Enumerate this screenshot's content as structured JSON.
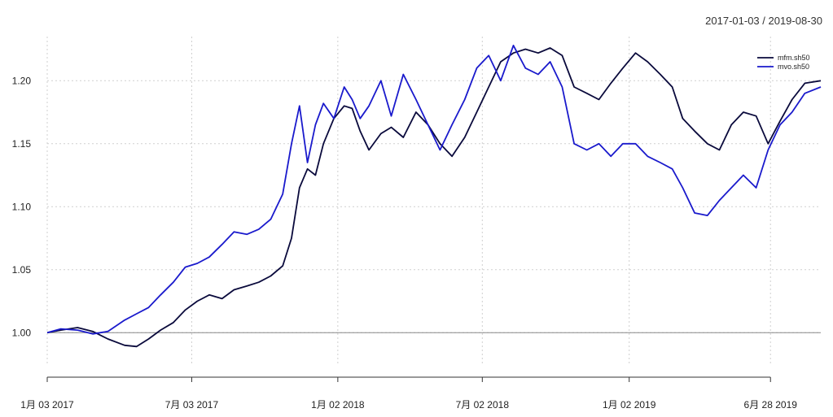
{
  "chart_data": {
    "type": "line",
    "date_range_label": "2017-01-03 / 2019-08-30",
    "x_ticks": [
      "1月 03 2017",
      "7月 03 2017",
      "1月 02 2018",
      "7月 02 2018",
      "1月 02 2019",
      "6月 28 2019"
    ],
    "y_ticks": [
      "1.00",
      "1.05",
      "1.10",
      "1.15",
      "1.20"
    ],
    "ylim": [
      0.975,
      1.235
    ],
    "grid": true,
    "legend_position": "top-right",
    "series": [
      {
        "name": "mfm.sh50",
        "color": "#0a0a3c",
        "points": [
          [
            "2017-01-03",
            1.0
          ],
          [
            "2017-01-20",
            1.002
          ],
          [
            "2017-02-10",
            1.004
          ],
          [
            "2017-03-01",
            1.001
          ],
          [
            "2017-03-20",
            0.995
          ],
          [
            "2017-04-10",
            0.99
          ],
          [
            "2017-04-25",
            0.989
          ],
          [
            "2017-05-10",
            0.995
          ],
          [
            "2017-05-25",
            1.002
          ],
          [
            "2017-06-10",
            1.008
          ],
          [
            "2017-06-25",
            1.018
          ],
          [
            "2017-07-10",
            1.025
          ],
          [
            "2017-07-25",
            1.03
          ],
          [
            "2017-08-10",
            1.027
          ],
          [
            "2017-08-25",
            1.034
          ],
          [
            "2017-09-10",
            1.037
          ],
          [
            "2017-09-25",
            1.04
          ],
          [
            "2017-10-10",
            1.045
          ],
          [
            "2017-10-25",
            1.053
          ],
          [
            "2017-11-05",
            1.075
          ],
          [
            "2017-11-15",
            1.115
          ],
          [
            "2017-11-25",
            1.13
          ],
          [
            "2017-12-05",
            1.125
          ],
          [
            "2017-12-15",
            1.15
          ],
          [
            "2017-12-28",
            1.17
          ],
          [
            "2018-01-10",
            1.18
          ],
          [
            "2018-01-20",
            1.178
          ],
          [
            "2018-01-30",
            1.16
          ],
          [
            "2018-02-10",
            1.145
          ],
          [
            "2018-02-25",
            1.158
          ],
          [
            "2018-03-10",
            1.163
          ],
          [
            "2018-03-25",
            1.155
          ],
          [
            "2018-04-10",
            1.175
          ],
          [
            "2018-04-25",
            1.165
          ],
          [
            "2018-05-10",
            1.15
          ],
          [
            "2018-05-25",
            1.14
          ],
          [
            "2018-06-10",
            1.155
          ],
          [
            "2018-06-25",
            1.175
          ],
          [
            "2018-07-10",
            1.195
          ],
          [
            "2018-07-25",
            1.215
          ],
          [
            "2018-08-10",
            1.222
          ],
          [
            "2018-08-25",
            1.225
          ],
          [
            "2018-09-10",
            1.222
          ],
          [
            "2018-09-25",
            1.226
          ],
          [
            "2018-10-10",
            1.22
          ],
          [
            "2018-10-25",
            1.195
          ],
          [
            "2018-11-10",
            1.19
          ],
          [
            "2018-11-25",
            1.185
          ],
          [
            "2018-12-10",
            1.198
          ],
          [
            "2018-12-25",
            1.21
          ],
          [
            "2019-01-10",
            1.222
          ],
          [
            "2019-01-25",
            1.215
          ],
          [
            "2019-02-10",
            1.205
          ],
          [
            "2019-02-25",
            1.195
          ],
          [
            "2019-03-10",
            1.17
          ],
          [
            "2019-03-25",
            1.16
          ],
          [
            "2019-04-10",
            1.15
          ],
          [
            "2019-04-25",
            1.145
          ],
          [
            "2019-05-10",
            1.165
          ],
          [
            "2019-05-25",
            1.175
          ],
          [
            "2019-06-10",
            1.172
          ],
          [
            "2019-06-25",
            1.15
          ],
          [
            "2019-07-10",
            1.168
          ],
          [
            "2019-07-25",
            1.185
          ],
          [
            "2019-08-10",
            1.198
          ],
          [
            "2019-08-30",
            1.2
          ]
        ]
      },
      {
        "name": "mvo.sh50",
        "color": "#1a1acc",
        "points": [
          [
            "2017-01-03",
            1.0
          ],
          [
            "2017-01-20",
            1.003
          ],
          [
            "2017-02-10",
            1.002
          ],
          [
            "2017-03-01",
            0.999
          ],
          [
            "2017-03-20",
            1.001
          ],
          [
            "2017-04-10",
            1.01
          ],
          [
            "2017-04-25",
            1.015
          ],
          [
            "2017-05-10",
            1.02
          ],
          [
            "2017-05-25",
            1.03
          ],
          [
            "2017-06-10",
            1.04
          ],
          [
            "2017-06-25",
            1.052
          ],
          [
            "2017-07-10",
            1.055
          ],
          [
            "2017-07-25",
            1.06
          ],
          [
            "2017-08-10",
            1.07
          ],
          [
            "2017-08-25",
            1.08
          ],
          [
            "2017-09-10",
            1.078
          ],
          [
            "2017-09-25",
            1.082
          ],
          [
            "2017-10-10",
            1.09
          ],
          [
            "2017-10-25",
            1.11
          ],
          [
            "2017-11-05",
            1.15
          ],
          [
            "2017-11-15",
            1.18
          ],
          [
            "2017-11-25",
            1.135
          ],
          [
            "2017-12-05",
            1.165
          ],
          [
            "2017-12-15",
            1.182
          ],
          [
            "2017-12-28",
            1.17
          ],
          [
            "2018-01-10",
            1.195
          ],
          [
            "2018-01-20",
            1.185
          ],
          [
            "2018-01-30",
            1.17
          ],
          [
            "2018-02-10",
            1.18
          ],
          [
            "2018-02-25",
            1.2
          ],
          [
            "2018-03-10",
            1.172
          ],
          [
            "2018-03-25",
            1.205
          ],
          [
            "2018-04-10",
            1.185
          ],
          [
            "2018-04-25",
            1.165
          ],
          [
            "2018-05-10",
            1.145
          ],
          [
            "2018-05-25",
            1.165
          ],
          [
            "2018-06-10",
            1.185
          ],
          [
            "2018-06-25",
            1.21
          ],
          [
            "2018-07-10",
            1.22
          ],
          [
            "2018-07-25",
            1.2
          ],
          [
            "2018-08-10",
            1.228
          ],
          [
            "2018-08-25",
            1.21
          ],
          [
            "2018-09-10",
            1.205
          ],
          [
            "2018-09-25",
            1.215
          ],
          [
            "2018-10-10",
            1.195
          ],
          [
            "2018-10-25",
            1.15
          ],
          [
            "2018-11-10",
            1.145
          ],
          [
            "2018-11-25",
            1.15
          ],
          [
            "2018-12-10",
            1.14
          ],
          [
            "2018-12-25",
            1.15
          ],
          [
            "2019-01-10",
            1.15
          ],
          [
            "2019-01-25",
            1.14
          ],
          [
            "2019-02-10",
            1.135
          ],
          [
            "2019-02-25",
            1.13
          ],
          [
            "2019-03-10",
            1.115
          ],
          [
            "2019-03-25",
            1.095
          ],
          [
            "2019-04-10",
            1.093
          ],
          [
            "2019-04-25",
            1.105
          ],
          [
            "2019-05-10",
            1.115
          ],
          [
            "2019-05-25",
            1.125
          ],
          [
            "2019-06-10",
            1.115
          ],
          [
            "2019-06-25",
            1.145
          ],
          [
            "2019-07-10",
            1.165
          ],
          [
            "2019-07-25",
            1.175
          ],
          [
            "2019-08-10",
            1.19
          ],
          [
            "2019-08-30",
            1.195
          ]
        ]
      }
    ]
  }
}
